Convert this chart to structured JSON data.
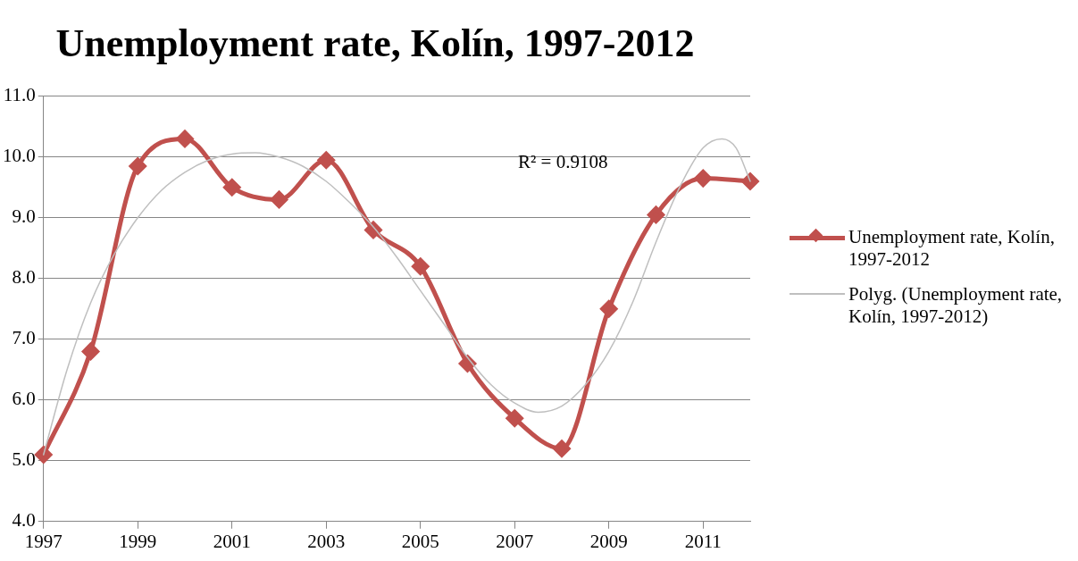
{
  "chart_data": {
    "type": "line",
    "title": "Unemployment rate, Kolín, 1997-2012",
    "x": [
      1997,
      1998,
      1999,
      2000,
      2001,
      2002,
      2003,
      2004,
      2005,
      2006,
      2007,
      2008,
      2009,
      2010,
      2011,
      2012
    ],
    "xlim": [
      1997,
      2012
    ],
    "xticks": [
      1997,
      1999,
      2001,
      2003,
      2005,
      2007,
      2009,
      2011
    ],
    "ylim": [
      4,
      11
    ],
    "yticks": [
      {
        "value": 4,
        "label": "4.0"
      },
      {
        "value": 5,
        "label": "5.0"
      },
      {
        "value": 6,
        "label": "6.0"
      },
      {
        "value": 7,
        "label": "7.0"
      },
      {
        "value": 8,
        "label": "8.0"
      },
      {
        "value": 9,
        "label": "9.0"
      },
      {
        "value": 10,
        "label": "10.0"
      },
      {
        "value": 11,
        "label": "11.0"
      }
    ],
    "grid": "y",
    "legend": "right",
    "marker": "diamond",
    "line_style": "solid",
    "annotations": [
      "R² = 0.9108"
    ],
    "series": [
      {
        "name": "Unemployment rate, Kolín, 1997-2012",
        "color": "#c0504d",
        "values": [
          5.1,
          6.8,
          9.85,
          10.3,
          9.5,
          9.3,
          9.95,
          8.8,
          8.2,
          6.6,
          5.7,
          5.2,
          7.5,
          9.05,
          9.65,
          9.6
        ]
      },
      {
        "name": "Polyg. (Unemployment rate, Kolín, 1997-2012)",
        "color": "#bfbfbf",
        "marker": "none",
        "x": [
          1997,
          1997.5,
          1998,
          1998.5,
          1999,
          1999.5,
          2000,
          2000.5,
          2001,
          2001.5,
          2002,
          2002.5,
          2003,
          2003.5,
          2004,
          2004.5,
          2005,
          2005.5,
          2006,
          2006.5,
          2007,
          2007.5,
          2008,
          2008.5,
          2009,
          2009.5,
          2010,
          2010.5,
          2011,
          2011.4,
          2011.7,
          2012
        ],
        "values": [
          5.1,
          6.5,
          7.6,
          8.4,
          9.0,
          9.45,
          9.75,
          9.95,
          10.05,
          10.07,
          10.0,
          9.85,
          9.6,
          9.25,
          8.85,
          8.35,
          7.8,
          7.25,
          6.7,
          6.25,
          5.95,
          5.8,
          5.9,
          6.25,
          6.8,
          7.6,
          8.6,
          9.5,
          10.15,
          10.3,
          10.15,
          9.6
        ]
      }
    ]
  }
}
